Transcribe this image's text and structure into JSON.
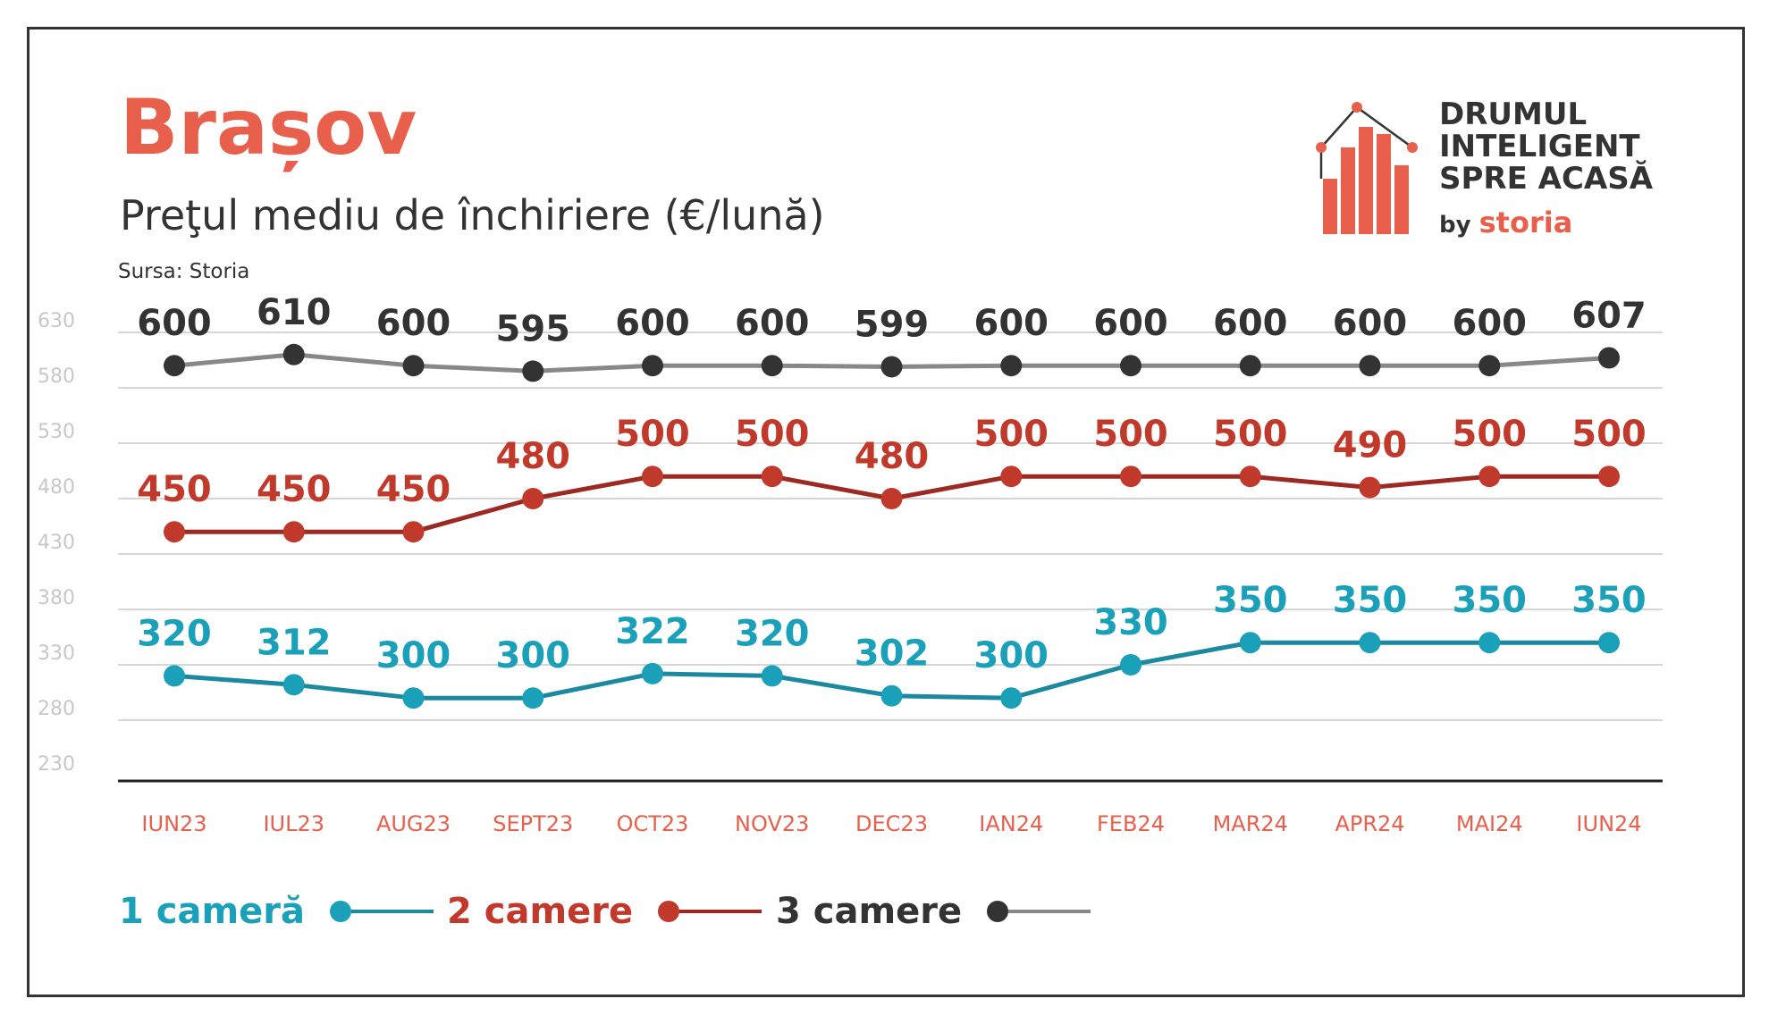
{
  "title": "Brașov",
  "subtitle": "Preţul mediu de închiriere (€/lună)",
  "source": "Sursa: Storia",
  "logo": {
    "line1": "DRUMUL",
    "line2": "INTELIGENT",
    "line3": "SPRE ACASĂ",
    "by": "by",
    "brand": "storia"
  },
  "colors": {
    "accent": "#e8604c",
    "series1": "#1aa0b8",
    "series1_line": "#1b8aa0",
    "series2": "#c0392b",
    "series2_line": "#9c2a22",
    "series3": "#333333",
    "series3_line": "#888888",
    "axis_text": "#c8c8c8",
    "month_text": "#e8604c"
  },
  "legend": [
    {
      "label": "1 cameră"
    },
    {
      "label": "2 camere"
    },
    {
      "label": "3 camere"
    }
  ],
  "chart_data": {
    "type": "line",
    "title": "Preţul mediu de închiriere (€/lună)",
    "xlabel": "",
    "ylabel": "",
    "categories": [
      "IUN23",
      "IUL23",
      "AUG23",
      "SEPT23",
      "OCT23",
      "NOV23",
      "DEC23",
      "IAN24",
      "FEB24",
      "MAR24",
      "APR24",
      "MAI24",
      "IUN24"
    ],
    "ylim": [
      230,
      630
    ],
    "yticks": [
      230,
      280,
      330,
      380,
      430,
      480,
      530,
      580,
      630
    ],
    "grid": true,
    "legend_position": "bottom-left",
    "series": [
      {
        "name": "1 cameră",
        "values": [
          320,
          312,
          300,
          300,
          322,
          320,
          302,
          300,
          330,
          350,
          350,
          350,
          350
        ]
      },
      {
        "name": "2 camere",
        "values": [
          450,
          450,
          450,
          480,
          500,
          500,
          480,
          500,
          500,
          500,
          490,
          500,
          500
        ]
      },
      {
        "name": "3 camere",
        "values": [
          600,
          610,
          600,
          595,
          600,
          600,
          599,
          600,
          600,
          600,
          600,
          600,
          607
        ]
      }
    ]
  }
}
